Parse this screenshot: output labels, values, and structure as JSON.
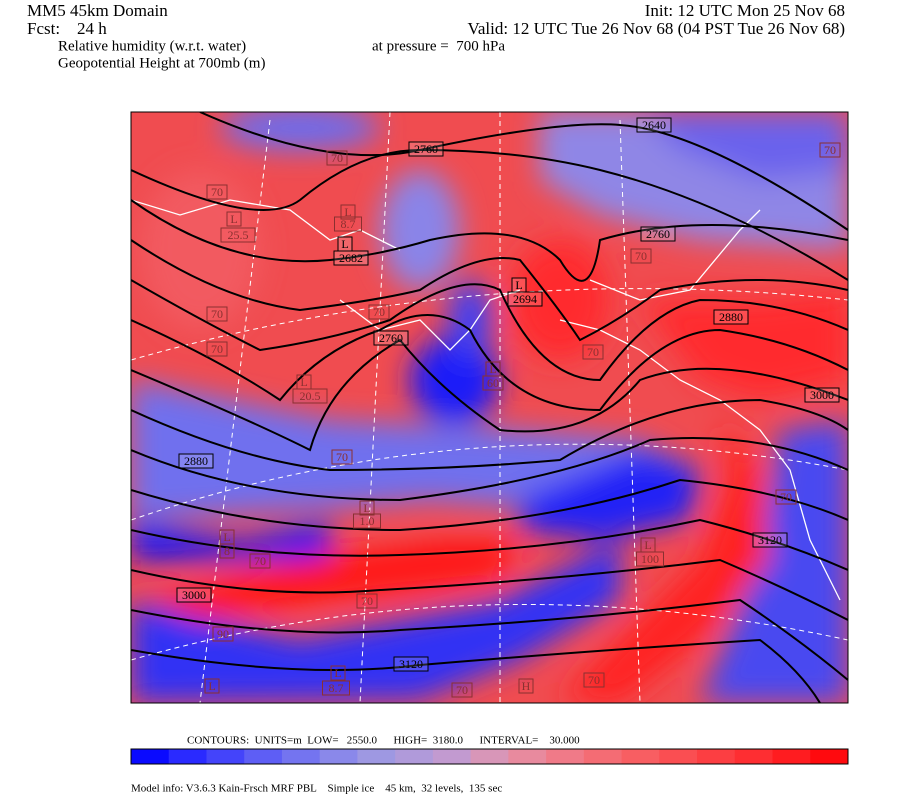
{
  "header": {
    "title": "MM5 45km Domain",
    "init": "Init: 12 UTC Mon 25 Nov 68",
    "fcst": "Fcst:    24 h",
    "valid": "Valid: 12 UTC Tue 26 Nov 68 (04 PST Tue 26 Nov 68)",
    "field1": "Relative humidity (w.r.t. water)",
    "pressure": "at pressure =  700 hPa",
    "field2": "Geopotential Height at 700mb (m)"
  },
  "map": {
    "labels": [
      "2640",
      "2760",
      "70",
      "70",
      "70",
      "L",
      "25.5",
      "L",
      "8.7",
      "L",
      "2682",
      "2760",
      "70",
      "L",
      "2694",
      "70",
      "70",
      "2880",
      "2760",
      "70",
      "70",
      "L",
      "60",
      "L",
      "20.5",
      "3000",
      "2880",
      "70",
      "70",
      "L",
      "1.0",
      "3120",
      "L",
      "8",
      "70",
      "L",
      "100",
      "3000",
      "70",
      "90",
      "3120",
      "L",
      "8.7",
      "70",
      "H",
      "70",
      "L"
    ]
  },
  "colorbar": {
    "contours": "CONTOURS:  UNITS=m  LOW=   2550.0      HIGH=  3180.0      INTERVAL=    30.000",
    "colors": [
      "#0a0aff",
      "#2a2aff",
      "#4444fa",
      "#5e5ef5",
      "#7474f0",
      "#8a88ea",
      "#9e98e2",
      "#b09ada",
      "#c29ad0",
      "#d896b8",
      "#e88a9e",
      "#f07a88",
      "#f46c74",
      "#f85e62",
      "#fa4e52",
      "#fc3e42",
      "#fe2e32",
      "#ff1c20",
      "#ff0a0e"
    ]
  },
  "footer": "Model info: V3.6.3 Kain-Frsch MRF PBL    Simple ice    45 km,  32 levels,  135 sec"
}
